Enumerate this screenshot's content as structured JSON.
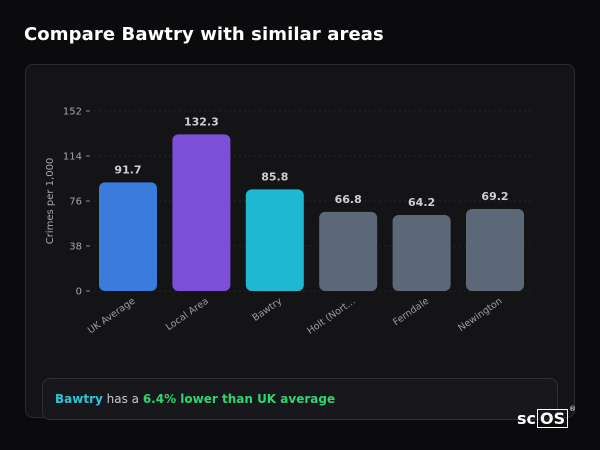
{
  "title": "Compare Bawtry with similar areas",
  "note": {
    "area": "Bawtry",
    "text_middle": " has a ",
    "highlight": "6.4% lower than UK average"
  },
  "brand": {
    "prefix": "sc",
    "boxed": "OS",
    "mark": "®"
  },
  "chart_data": {
    "type": "bar",
    "ylabel": "Crimes per 1,000",
    "xlabel": "",
    "ylim": [
      0,
      152
    ],
    "yticks": [
      0,
      38,
      76,
      114,
      152
    ],
    "grid": true,
    "categories": [
      "UK Average",
      "Local Area",
      "Bawtry",
      "Holt (Nort…",
      "Ferndale",
      "Newington"
    ],
    "values": [
      91.7,
      132.3,
      85.8,
      66.8,
      64.2,
      69.2
    ],
    "value_labels": [
      "91.7",
      "132.3",
      "85.8",
      "66.8",
      "64.2",
      "69.2"
    ],
    "colors": [
      "#3a7bdc",
      "#7b4fd8",
      "#1fb8d0",
      "#5c6778",
      "#5c6778",
      "#5c6778"
    ]
  }
}
